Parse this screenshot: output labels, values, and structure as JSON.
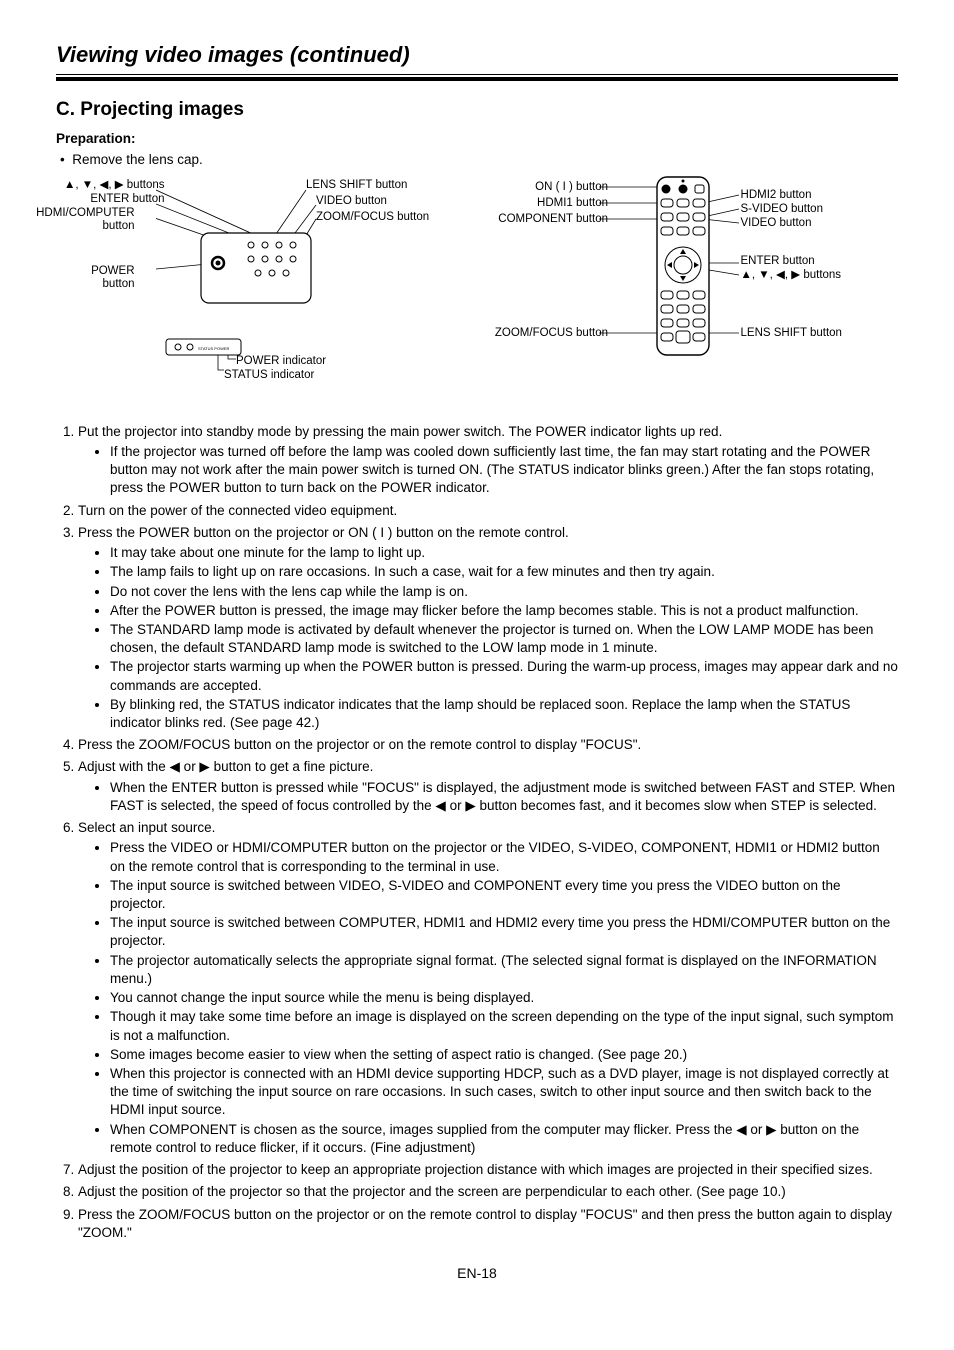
{
  "page_title": "Viewing video images (continued)",
  "section_title": "C. Projecting images",
  "preparation": {
    "label": "Preparation:",
    "items": [
      "Remove the lens cap."
    ]
  },
  "diagram_projector": {
    "labels_left": [
      "▲, ▼, ◀, ▶ buttons",
      "ENTER button",
      "HDMI/COMPUTER button",
      "POWER button"
    ],
    "labels_right_top": [
      "LENS SHIFT button",
      "VIDEO button",
      "ZOOM/FOCUS button"
    ],
    "labels_bottom": [
      "POWER indicator",
      "STATUS indicator"
    ]
  },
  "diagram_remote": {
    "labels_left": [
      "ON ( I ) button",
      "HDMI1 button",
      "COMPONENT button",
      "ZOOM/FOCUS button"
    ],
    "labels_right": [
      "HDMI2 button",
      "S-VIDEO button",
      "VIDEO button",
      "ENTER button",
      "▲, ▼, ◀, ▶ buttons",
      "LENS SHIFT button"
    ]
  },
  "steps": [
    {
      "text": "Put the projector into standby mode by pressing the main power switch. The POWER indicator lights up red.",
      "sub": [
        "If the projector was turned off before the lamp was cooled down sufficiently last time, the fan may start rotating and the POWER button may not work after the main power switch is turned ON. (The STATUS indicator blinks green.) After the fan stops rotating, press the POWER button to turn back on the POWER indicator."
      ]
    },
    {
      "text": "Turn on the power of the connected video equipment.",
      "sub": []
    },
    {
      "text": "Press the POWER button on the projector or ON ( I ) button on the remote control.",
      "sub": [
        "It may take about one minute for the lamp to light up.",
        "The lamp fails to light up on rare occasions. In such a case, wait for a few minutes and then try again.",
        "Do not cover the lens with the lens cap while the lamp is on.",
        "After the POWER button is pressed, the image may flicker before the lamp becomes stable. This is not a product malfunction.",
        "The STANDARD lamp mode is activated by default whenever the projector is turned on. When the LOW LAMP MODE has been chosen, the default STANDARD lamp mode is switched to the LOW lamp mode in 1 minute.",
        "The projector starts warming up when the POWER button is pressed. During the warm-up process, images may appear dark and no commands are accepted.",
        "By blinking red, the STATUS indicator indicates that the lamp should be replaced soon. Replace the lamp when the STATUS indicator blinks red. (See page 42.)"
      ]
    },
    {
      "text": "Press the ZOOM/FOCUS button on the projector or on the remote control to display \"FOCUS\".",
      "sub": []
    },
    {
      "text": "Adjust with the ◀ or ▶ button to get a fine picture.",
      "sub": [
        "When the ENTER button is pressed while \"FOCUS\" is displayed, the adjustment mode is switched between FAST and STEP. When FAST is selected, the speed of focus controlled by the ◀ or ▶ button becomes fast, and it becomes slow when STEP is selected."
      ]
    },
    {
      "text": "Select an input source.",
      "sub": [
        "Press the VIDEO or HDMI/COMPUTER button on the projector or the VIDEO, S-VIDEO, COMPONENT, HDMI1 or HDMI2 button on the remote control that is corresponding to the terminal in use.",
        "The input source is switched between VIDEO, S-VIDEO and COMPONENT every time you press the VIDEO button on the projector.",
        "The input source is switched between COMPUTER, HDMI1 and HDMI2 every time you press the HDMI/COMPUTER button on the projector.",
        "The projector automatically selects the appropriate signal format. (The selected signal format is displayed on the INFORMATION menu.)",
        "You cannot change the input source while the menu is being displayed.",
        "Though it may take some time before an image is displayed on the screen depending on the type of the input signal, such symptom is not a malfunction.",
        "Some images become easier to view when the setting of aspect ratio is changed. (See page 20.)",
        "When this projector is connected with an HDMI device supporting HDCP, such as a DVD player, image is not displayed correctly at the time of switching the input source on rare occasions. In such cases, switch to other input source and then switch back to the HDMI input source.",
        "When COMPONENT is chosen as the source, images supplied from the computer may flicker. Press the ◀ or ▶ button on the remote control to reduce flicker, if it occurs. (Fine adjustment)"
      ]
    },
    {
      "text": "Adjust the position of the projector to keep an appropriate projection distance with which images are projected in their specified sizes.",
      "sub": []
    },
    {
      "text": "Adjust the position of the projector so that the projector and the screen are perpendicular to each other. (See page 10.)",
      "sub": []
    },
    {
      "text": "Press the ZOOM/FOCUS button on the projector or on the remote control to display \"FOCUS\" and then press the button again to display \"ZOOM.\"",
      "sub": []
    }
  ],
  "footer": "EN-18"
}
